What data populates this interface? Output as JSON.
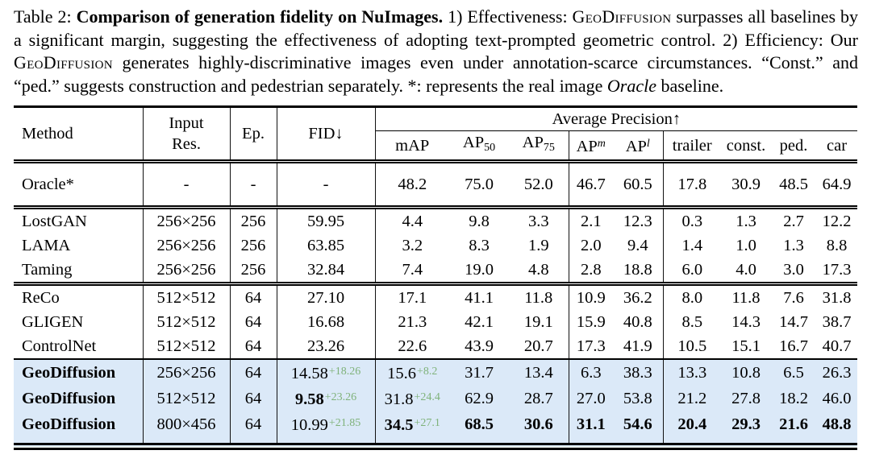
{
  "caption": {
    "segments": [
      {
        "style": "normal",
        "text": "Table 2: "
      },
      {
        "style": "bold",
        "text": "Comparison of generation fidelity on NuImages."
      },
      {
        "style": "normal",
        "text": " 1) Effectiveness: "
      },
      {
        "style": "smallcaps",
        "text": "GeoDiffusion"
      },
      {
        "style": "normal",
        "text": " surpasses all baselines by a significant margin, suggesting the effectiveness of adopting text-prompted geometric control. 2) Efficiency: Our "
      },
      {
        "style": "smallcaps",
        "text": "GeoDiffusion"
      },
      {
        "style": "normal",
        "text": " generates highly-discriminative images even under annotation-scarce circumstances. “Const.” and “ped.” suggests construction and pedestrian separately. *: represents the real image "
      },
      {
        "style": "italic",
        "text": "Oracle"
      },
      {
        "style": "normal",
        "text": " baseline."
      }
    ]
  },
  "table": {
    "colors": {
      "highlight": "#dbe9f8",
      "delta_green": "#7fb27a"
    },
    "header": {
      "method": "Method",
      "input_res_line1": "Input",
      "input_res_line2": "Res.",
      "ep": "Ep.",
      "fid": "FID↓",
      "avg_precision": "Average Precision↑"
    },
    "subheader": [
      {
        "text": "mAP"
      },
      {
        "text": "AP",
        "sub": "50"
      },
      {
        "text": "AP",
        "sub": "75"
      },
      {
        "text": "AP",
        "sup": "m"
      },
      {
        "text": "AP",
        "sup": "l"
      },
      {
        "text": "trailer"
      },
      {
        "text": "const."
      },
      {
        "text": "ped."
      },
      {
        "text": "car"
      }
    ],
    "groups": [
      {
        "name": "oracle",
        "separator": "none",
        "tall": true,
        "rows": [
          {
            "cells": [
              "Oracle*",
              "-",
              "-",
              "-",
              "48.2",
              "75.0",
              "52.0",
              "46.7",
              "60.5",
              "17.8",
              "30.9",
              "48.5",
              "64.9"
            ]
          }
        ]
      },
      {
        "name": "low-res-baselines",
        "separator": "double",
        "rows": [
          {
            "cells": [
              "LostGAN",
              "256×256",
              "256",
              "59.95",
              "4.4",
              "9.8",
              "3.3",
              "2.1",
              "12.3",
              "0.3",
              "1.3",
              "2.7",
              "12.2"
            ]
          },
          {
            "cells": [
              "LAMA",
              "256×256",
              "256",
              "63.85",
              "3.2",
              "8.3",
              "1.9",
              "2.0",
              "9.4",
              "1.4",
              "1.0",
              "1.3",
              "8.8"
            ]
          },
          {
            "cells": [
              "Taming",
              "256×256",
              "256",
              "32.84",
              "7.4",
              "19.0",
              "4.8",
              "2.8",
              "18.8",
              "6.0",
              "4.0",
              "3.0",
              "17.3"
            ]
          }
        ]
      },
      {
        "name": "high-res-baselines",
        "separator": "double",
        "rows": [
          {
            "cells": [
              "ReCo",
              "512×512",
              "64",
              "27.10",
              "17.1",
              "41.1",
              "11.8",
              "10.9",
              "36.2",
              "8.0",
              "11.8",
              "7.6",
              "31.8"
            ]
          },
          {
            "cells": [
              "GLIGEN",
              "512×512",
              "64",
              "16.68",
              "21.3",
              "42.1",
              "19.1",
              "15.9",
              "40.8",
              "8.5",
              "14.3",
              "14.7",
              "38.7"
            ]
          },
          {
            "cells": [
              "ControlNet",
              "512×512",
              "64",
              "23.26",
              "22.6",
              "43.9",
              "20.7",
              "17.3",
              "41.9",
              "10.5",
              "15.1",
              "16.7",
              "40.7"
            ]
          }
        ]
      },
      {
        "name": "geodiffusion",
        "separator": "single",
        "highlight": true,
        "rows": [
          {
            "cells": [
              {
                "v": "GeoDiffusion",
                "b": true
              },
              "256×256",
              "64",
              {
                "v": "14.58",
                "d": "+18.26"
              },
              {
                "v": "15.6",
                "d": "+8.2"
              },
              "31.7",
              "13.4",
              "6.3",
              "38.3",
              "13.3",
              "10.8",
              "6.5",
              "26.3"
            ]
          },
          {
            "cells": [
              {
                "v": "GeoDiffusion",
                "b": true
              },
              "512×512",
              "64",
              {
                "v": "9.58",
                "b": true,
                "d": "+23.26"
              },
              {
                "v": "31.8",
                "d": "+24.4"
              },
              "62.9",
              "28.7",
              "27.0",
              "53.8",
              "21.2",
              "27.8",
              "18.2",
              "46.0"
            ]
          },
          {
            "cells": [
              {
                "v": "GeoDiffusion",
                "b": true
              },
              "800×456",
              "64",
              {
                "v": "10.99",
                "d": "+21.85"
              },
              {
                "v": "34.5",
                "b": true,
                "d": "+27.1"
              },
              {
                "v": "68.5",
                "b": true
              },
              {
                "v": "30.6",
                "b": true
              },
              {
                "v": "31.1",
                "b": true
              },
              {
                "v": "54.6",
                "b": true
              },
              {
                "v": "20.4",
                "b": true
              },
              {
                "v": "29.3",
                "b": true
              },
              {
                "v": "21.6",
                "b": true
              },
              {
                "v": "48.8",
                "b": true
              }
            ]
          }
        ]
      }
    ]
  }
}
